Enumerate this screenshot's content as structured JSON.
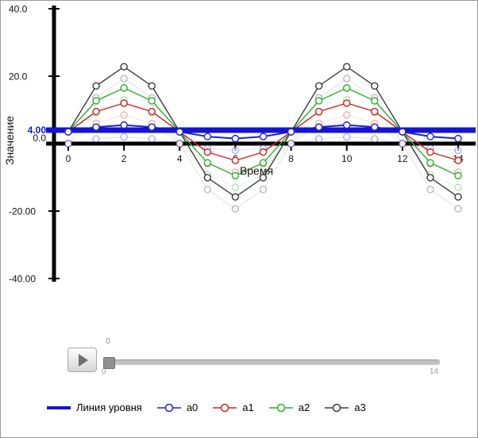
{
  "window": {
    "background": "#ffffff",
    "border_color": "#9c9c9c"
  },
  "chart": {
    "ylabel": "Значение",
    "xlabel": "Время",
    "axis_color": "#000000",
    "y_tick_values": [
      40,
      20,
      0,
      -20,
      -40
    ],
    "y_tick_labels": [
      "40.0",
      "20.0",
      "0.0",
      "-20.00",
      "-40.00"
    ],
    "x_tick_values": [
      0,
      2,
      4,
      6,
      8,
      10,
      12,
      14
    ],
    "x_tick_labels": [
      "0",
      "2",
      "4",
      "6",
      "8",
      "10",
      "12",
      "14"
    ],
    "level_line": {
      "label": "4.00",
      "value": 4,
      "color": "#1414d2"
    }
  },
  "chart_data": {
    "type": "line",
    "title": "",
    "xlabel": "Время",
    "ylabel": "Значение",
    "xlim": [
      0,
      14.6
    ],
    "ylim": [
      -40,
      40
    ],
    "grid": false,
    "legend_position": "bottom",
    "marker": "white-filled-circle",
    "x": [
      0,
      1,
      2,
      3,
      4,
      5,
      6,
      7,
      8,
      9,
      10,
      11,
      12,
      13,
      14
    ],
    "series": [
      {
        "name": "a0",
        "color": "#1f23cd",
        "values": [
          3.5,
          4.9,
          5.5,
          4.9,
          3.5,
          2.1,
          1.5,
          2.1,
          3.5,
          4.9,
          5.5,
          4.9,
          3.5,
          2.1,
          1.5
        ]
      },
      {
        "name": "a1",
        "color": "#cc2525",
        "values": [
          3.5,
          9.5,
          12.0,
          9.5,
          3.5,
          -2.5,
          -5.0,
          -2.5,
          3.5,
          9.5,
          12.0,
          9.5,
          3.5,
          -2.5,
          -5.0
        ]
      },
      {
        "name": "a2",
        "color": "#28b12c",
        "values": [
          3.5,
          12.7,
          16.5,
          12.7,
          3.5,
          -5.7,
          -9.5,
          -5.7,
          3.5,
          12.7,
          16.5,
          12.7,
          3.5,
          -5.7,
          -9.5
        ]
      },
      {
        "name": "a3",
        "color": "#3a3a3a",
        "values": [
          3.5,
          17.1,
          22.8,
          17.1,
          3.5,
          -10.1,
          -15.8,
          -10.1,
          3.5,
          17.1,
          22.8,
          17.1,
          3.5,
          -10.1,
          -15.8
        ]
      }
    ],
    "trail": {
      "offset": -3.5,
      "line_opacity": 0.12,
      "marker_opacity": 0.35
    },
    "level_line_value": 4
  },
  "slider": {
    "value_label": "0",
    "min_label": "0",
    "max_label": "14"
  },
  "legend": {
    "items": [
      {
        "label": "Линия уровня",
        "color": "#1414d2",
        "marker": "thick-line"
      },
      {
        "label": "a0",
        "color": "#1f23cd",
        "marker": "line-circle"
      },
      {
        "label": "a1",
        "color": "#cc2525",
        "marker": "line-circle"
      },
      {
        "label": "a2",
        "color": "#28b12c",
        "marker": "line-circle"
      },
      {
        "label": "a3",
        "color": "#3a3a3a",
        "marker": "line-circle"
      }
    ]
  }
}
